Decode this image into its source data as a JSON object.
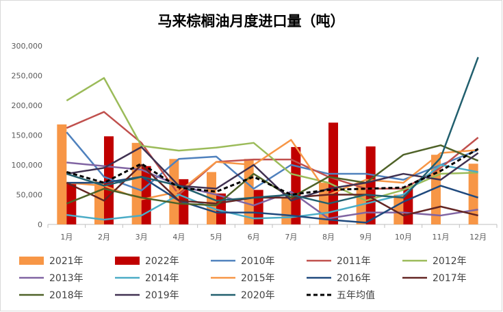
{
  "chart_data": {
    "type": "bar+line",
    "title": "马来棕榈油月度进口量（吨）",
    "categories": [
      "1月",
      "2月",
      "3月",
      "4月",
      "5月",
      "6月",
      "7月",
      "8月",
      "9月",
      "10月",
      "11月",
      "12月"
    ],
    "ylim": [
      0,
      300000
    ],
    "yticks": [
      0,
      50000,
      100000,
      150000,
      200000,
      250000,
      300000
    ],
    "ytick_labels": [
      "0",
      "50,000",
      "100,000",
      "150,000",
      "200,000",
      "250,000",
      "300,000"
    ],
    "grid": false,
    "legend_position": "bottom",
    "bar_series": [
      {
        "name": "2021年",
        "color": "#f79646",
        "values": [
          168000,
          72000,
          137000,
          110000,
          88000,
          110000,
          45000,
          70000,
          70000,
          50000,
          117000,
          102000
        ]
      },
      {
        "name": "2022年",
        "color": "#c00000",
        "values": [
          70000,
          148000,
          98000,
          76000,
          52000,
          58000,
          130000,
          171000,
          131000,
          60000,
          null,
          null
        ]
      }
    ],
    "line_series": [
      {
        "name": "2010年",
        "color": "#4f81bd",
        "dashed": false,
        "values": [
          155000,
          80000,
          57000,
          110000,
          114000,
          60000,
          100000,
          85000,
          85000,
          75000,
          100000,
          125000
        ]
      },
      {
        "name": "2011年",
        "color": "#c0504d",
        "dashed": false,
        "values": [
          162000,
          189000,
          137000,
          50000,
          105000,
          109000,
          109000,
          80000,
          60000,
          60000,
          95000,
          146000
        ]
      },
      {
        "name": "2012年",
        "color": "#9bbb59",
        "dashed": false,
        "values": [
          208000,
          246000,
          132000,
          124000,
          129000,
          137000,
          85000,
          70000,
          40000,
          58000,
          85000,
          87000
        ]
      },
      {
        "name": "2013年",
        "color": "#8064a2",
        "dashed": false,
        "values": [
          104000,
          98000,
          92000,
          65000,
          50000,
          32000,
          55000,
          10000,
          20000,
          20000,
          15000,
          25000
        ]
      },
      {
        "name": "2014年",
        "color": "#4bacc6",
        "dashed": false,
        "values": [
          16000,
          8000,
          15000,
          50000,
          25000,
          10000,
          12000,
          20000,
          35000,
          50000,
          100000,
          88000
        ]
      },
      {
        "name": "2015年",
        "color": "#f79646",
        "dashed": false,
        "values": [
          70000,
          65000,
          42000,
          55000,
          105000,
          100000,
          142000,
          50000,
          75000,
          70000,
          120000,
          125000
        ]
      },
      {
        "name": "2016年",
        "color": "#1f497d",
        "dashed": false,
        "values": [
          70000,
          70000,
          80000,
          40000,
          20000,
          20000,
          15000,
          8000,
          3000,
          38000,
          65000,
          45000
        ]
      },
      {
        "name": "2017年",
        "color": "#632523",
        "dashed": false,
        "values": [
          70000,
          40000,
          100000,
          40000,
          35000,
          45000,
          45000,
          50000,
          50000,
          15000,
          30000,
          15000
        ]
      },
      {
        "name": "2018年",
        "color": "#4f6228",
        "dashed": false,
        "values": [
          35000,
          60000,
          45000,
          35000,
          32000,
          85000,
          45000,
          80000,
          70000,
          117000,
          133000,
          107000
        ]
      },
      {
        "name": "2019年",
        "color": "#403151",
        "dashed": false,
        "values": [
          85000,
          95000,
          130000,
          65000,
          60000,
          100000,
          40000,
          60000,
          70000,
          85000,
          75000,
          120000
        ]
      },
      {
        "name": "2020年",
        "color": "#215f6e",
        "dashed": false,
        "values": [
          85000,
          65000,
          80000,
          65000,
          40000,
          45000,
          50000,
          35000,
          50000,
          45000,
          112000,
          281000
        ]
      },
      {
        "name": "五年均值",
        "color": "#000000",
        "dashed": true,
        "values": [
          88000,
          70000,
          102000,
          62000,
          55000,
          80000,
          50000,
          58000,
          60000,
          62000,
          90000,
          127000
        ]
      }
    ]
  }
}
